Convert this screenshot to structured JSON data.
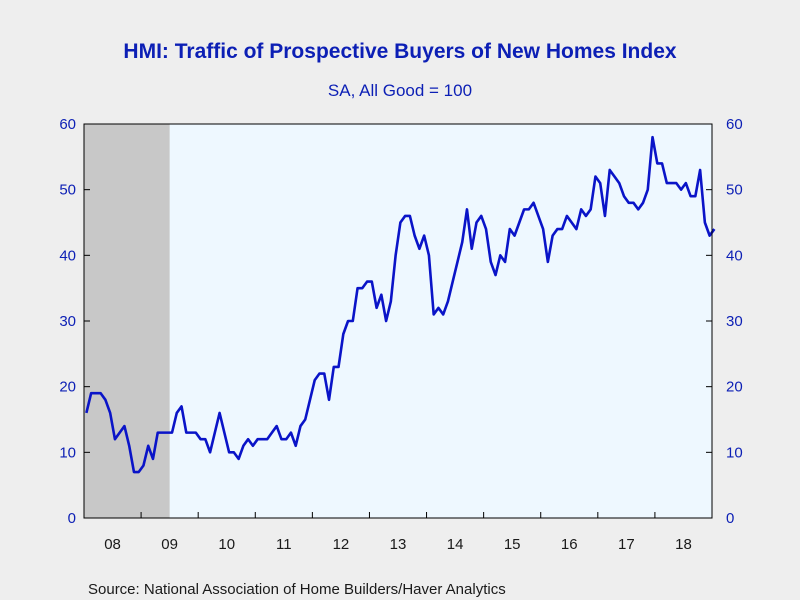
{
  "chart_data": {
    "type": "line",
    "title": "HMI: Traffic of Prospective Buyers of New Homes Index",
    "subtitle": "SA, All Good = 100",
    "source": "Source:  National Association of Home Builders/Haver Analytics",
    "ylim": [
      0,
      60
    ],
    "yticks": [
      "0",
      "10",
      "20",
      "30",
      "40",
      "50",
      "60"
    ],
    "yticks_right": [
      "0",
      "10",
      "20",
      "30",
      "40",
      "50",
      "60"
    ],
    "x_start_year": 2008,
    "x_end_year": 2018,
    "x_tick_labels": [
      "08",
      "09",
      "10",
      "11",
      "12",
      "13",
      "14",
      "15",
      "16",
      "17",
      "18"
    ],
    "recession": {
      "start_month_index": 0,
      "end_month_index": 17,
      "color": "#c8c8c8"
    },
    "plot_bg": "#eef8ff",
    "line_color": "#0a14c8",
    "grid": false,
    "series": [
      {
        "values": [
          16,
          19,
          19,
          19,
          18,
          16,
          12,
          13,
          14,
          11,
          7,
          7,
          8,
          11,
          9,
          13,
          13,
          13,
          13,
          16,
          17,
          13,
          13,
          13,
          12,
          12,
          10,
          13,
          16,
          13,
          10,
          10,
          9,
          11,
          12,
          11,
          12,
          12,
          12,
          13,
          14,
          12,
          12,
          13,
          11,
          14,
          15,
          18,
          21,
          22,
          22,
          18,
          23,
          23,
          28,
          30,
          30,
          35,
          35,
          36,
          36,
          32,
          34,
          30,
          33,
          40,
          45,
          46,
          46,
          43,
          41,
          43,
          40,
          31,
          32,
          31,
          33,
          36,
          39,
          42,
          47,
          41,
          45,
          46,
          44,
          39,
          37,
          40,
          39,
          44,
          43,
          45,
          47,
          47,
          48,
          46,
          44,
          39,
          43,
          44,
          44,
          46,
          45,
          44,
          47,
          46,
          47,
          52,
          51,
          46,
          53,
          52,
          51,
          49,
          48,
          48,
          47,
          48,
          50,
          58,
          54,
          54,
          51,
          51,
          51,
          50,
          51,
          49,
          49,
          53,
          45,
          43,
          44
        ]
      }
    ]
  }
}
